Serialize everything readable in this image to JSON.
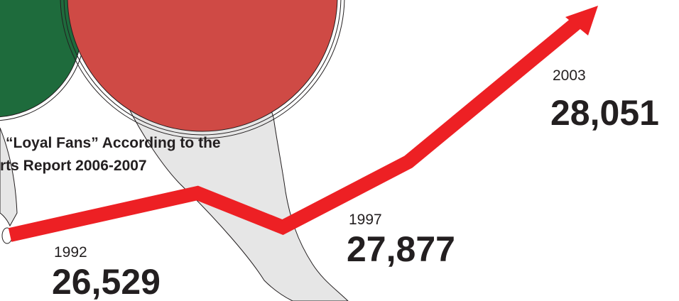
{
  "caption": {
    "line1": "“Loyal Fans” According to the",
    "line2": "rts Report 2006-2007"
  },
  "colors": {
    "line": "#ed2024",
    "green_circle": "#1e6b3c",
    "red_circle": "#cf4a45",
    "figure": "#e6e6e6",
    "text": "#231f20"
  },
  "chart_data": {
    "type": "line",
    "title": "",
    "xlabel": "",
    "ylabel": "",
    "x": [
      "1992",
      "1997",
      "2003"
    ],
    "values": [
      26529,
      27877,
      28051
    ],
    "data_labels": [
      "26,529",
      "27,877",
      "28,051"
    ],
    "axes_shown": false,
    "grid": false,
    "legend": "none"
  }
}
